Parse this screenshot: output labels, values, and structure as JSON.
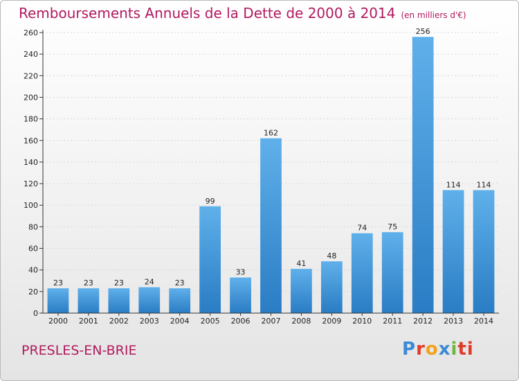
{
  "header": {
    "title": "Remboursements Annuels de la Dette de 2000 à 2014",
    "unit_note": "(en milliers d'€)"
  },
  "footer": {
    "place": "PRESLES-EN-BRIE",
    "logo_text": "Proxiti",
    "logo_letters": [
      "P",
      "r",
      "o",
      "x",
      "i",
      "ti"
    ]
  },
  "colors": {
    "title": "#b2185e",
    "bar_top": "#5fb0ea",
    "bar_bottom": "#2a7cc4",
    "grid": "#d8d8d8"
  },
  "chart_data": {
    "type": "bar",
    "categories": [
      "2000",
      "2001",
      "2002",
      "2003",
      "2004",
      "2005",
      "2006",
      "2007",
      "2008",
      "2009",
      "2010",
      "2011",
      "2012",
      "2013",
      "2014"
    ],
    "values": [
      23,
      23,
      23,
      24,
      23,
      99,
      33,
      162,
      41,
      48,
      74,
      75,
      256,
      114,
      114
    ],
    "data_labels": [
      "23",
      "23",
      "23",
      "24",
      "23",
      "99",
      "33",
      "162",
      "41",
      "48",
      "74",
      "75",
      "256",
      "114",
      "114"
    ],
    "y_ticks": [
      0,
      20,
      40,
      60,
      80,
      100,
      120,
      140,
      160,
      180,
      200,
      220,
      240,
      260
    ],
    "ylim": [
      0,
      260
    ],
    "grid": true,
    "title": "Remboursements Annuels de la Dette de 2000 à 2014",
    "xlabel": "",
    "ylabel": ""
  }
}
